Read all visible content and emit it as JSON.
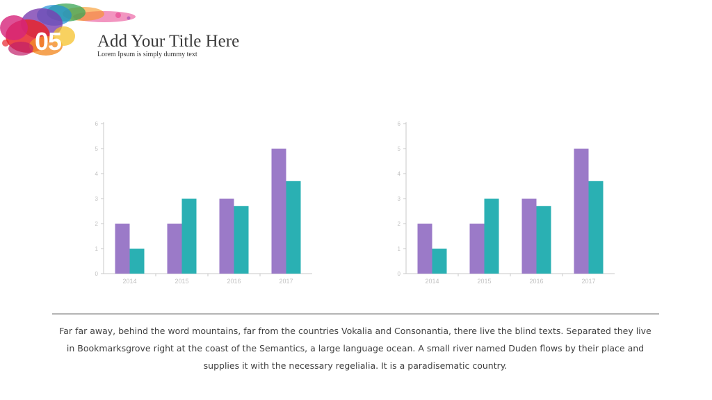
{
  "header": {
    "number": "05",
    "title": "Add Your Title Here",
    "subtitle": "Lorem Ipsum is simply dummy text"
  },
  "colors": {
    "series_a": "#9b7ac8",
    "series_b": "#2ab0b3",
    "axis": "#c8c8c8",
    "tick_text": "#c0c0c0"
  },
  "chart_data": [
    {
      "type": "bar",
      "categories": [
        "2014",
        "2015",
        "2016",
        "2017"
      ],
      "series": [
        {
          "values": [
            2,
            2,
            3,
            5
          ]
        },
        {
          "values": [
            1,
            3,
            2.7,
            3.7
          ]
        }
      ],
      "ylim": [
        0,
        6
      ],
      "yticks": [
        "0",
        "1",
        "2",
        "3",
        "4",
        "5",
        "6"
      ],
      "grid": false,
      "legend": "none"
    },
    {
      "type": "bar",
      "categories": [
        "2014",
        "2015",
        "2016",
        "2017"
      ],
      "series": [
        {
          "values": [
            2,
            2,
            3,
            5
          ]
        },
        {
          "values": [
            1,
            3,
            2.7,
            3.7
          ]
        }
      ],
      "ylim": [
        0,
        6
      ],
      "yticks": [
        "0",
        "1",
        "2",
        "3",
        "4",
        "5",
        "6"
      ],
      "grid": false,
      "legend": "none"
    }
  ],
  "body": {
    "text": "Far far away, behind the word mountains, far from the countries Vokalia and Consonantia, there live the blind texts. Separated they live in Bookmarksgrove right at the coast of the Semantics, a large language ocean. A small river named Duden flows by their place and supplies it with the necessary regelialia.  It is a paradisematic country."
  }
}
